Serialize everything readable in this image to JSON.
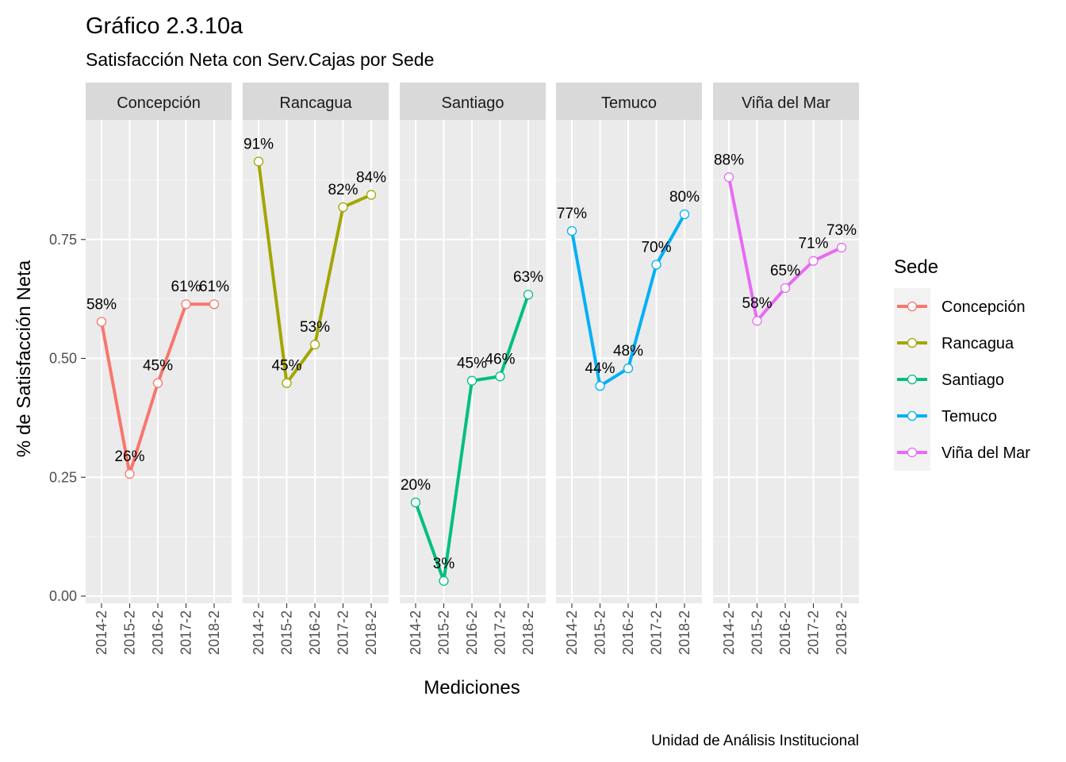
{
  "chart_data": {
    "type": "line",
    "title": "Gráfico 2.3.10a",
    "subtitle": "Satisfacción Neta con Serv.Cajas por Sede",
    "xlabel": "Mediciones",
    "ylabel": "% de Satisfacción Neta",
    "caption": "Unidad de Análisis Institucional",
    "legend_title": "Sede",
    "legend_position": "right",
    "categories": [
      "2014-2",
      "2015-2",
      "2016-2",
      "2017-2",
      "2018-2"
    ],
    "ylim": [
      0,
      1
    ],
    "yticks": [
      0.0,
      0.25,
      0.5,
      0.75
    ],
    "ytick_labels": [
      "0.00",
      "0.25",
      "0.50",
      "0.75"
    ],
    "grid": true,
    "facets": true,
    "series": [
      {
        "name": "Concepción",
        "color": "#F8766D",
        "values": [
          0.577,
          0.257,
          0.448,
          0.614,
          0.614
        ],
        "labels": [
          "58%",
          "26%",
          "45%",
          "61%",
          "61%"
        ]
      },
      {
        "name": "Rancagua",
        "color": "#A3A500",
        "values": [
          0.914,
          0.448,
          0.529,
          0.818,
          0.844
        ],
        "labels": [
          "91%",
          "45%",
          "53%",
          "82%",
          "84%"
        ]
      },
      {
        "name": "Santiago",
        "color": "#00BF7D",
        "values": [
          0.197,
          0.032,
          0.453,
          0.462,
          0.634
        ],
        "labels": [
          "20%",
          "3%",
          "45%",
          "46%",
          "63%"
        ]
      },
      {
        "name": "Temuco",
        "color": "#00B0F6",
        "values": [
          0.768,
          0.442,
          0.479,
          0.697,
          0.803
        ],
        "labels": [
          "77%",
          "44%",
          "48%",
          "70%",
          "80%"
        ]
      },
      {
        "name": "Viña del Mar",
        "color": "#E76BF3",
        "values": [
          0.881,
          0.579,
          0.648,
          0.705,
          0.733
        ],
        "labels": [
          "88%",
          "58%",
          "65%",
          "71%",
          "73%"
        ]
      }
    ]
  }
}
